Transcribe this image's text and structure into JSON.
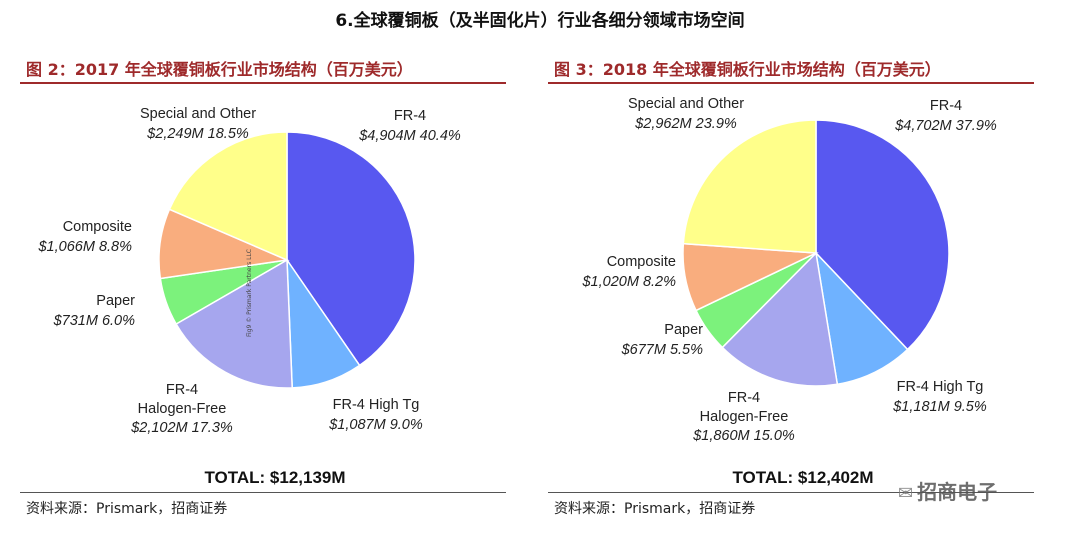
{
  "page_title": "6.全球覆铜板（及半固化片）行业各细分领域市场空间",
  "watermark": "招商电子",
  "colors": {
    "title_red": "#9e2a2b",
    "fr4": "#5858f0",
    "fr4_high_tg": "#6fb2ff",
    "fr4_halogen_free": "#a6a6ee",
    "paper": "#7cf27c",
    "composite": "#f9ad7e",
    "special_other": "#ffff8a"
  },
  "chart_data": [
    {
      "type": "pie",
      "title": "图 2：2017 年全球覆铜板行业市场结构（百万美元）",
      "total_label": "TOTAL: $12,139M",
      "source": "资料来源：Prismark，招商证券",
      "vertical_note": "Fig9 © Prismark Partners LLC",
      "slices": [
        {
          "name": "FR-4",
          "value_label": "$4,904M",
          "percent": 40.4,
          "value": 4904,
          "color": "#5858f0"
        },
        {
          "name": "FR-4 High Tg",
          "value_label": "$1,087M",
          "percent": 9.0,
          "value": 1087,
          "color": "#6fb2ff"
        },
        {
          "name": "FR-4 Halogen-Free",
          "value_label": "$2,102M",
          "percent": 17.3,
          "value": 2102,
          "color": "#a6a6ee"
        },
        {
          "name": "Paper",
          "value_label": "$731M",
          "percent": 6.0,
          "value": 731,
          "color": "#7cf27c"
        },
        {
          "name": "Composite",
          "value_label": "$1,066M",
          "percent": 8.8,
          "value": 1066,
          "color": "#f9ad7e"
        },
        {
          "name": "Special and Other",
          "value_label": "$2,249M",
          "percent": 18.5,
          "value": 2249,
          "color": "#ffff8a"
        }
      ]
    },
    {
      "type": "pie",
      "title": "图 3：2018 年全球覆铜板行业市场结构（百万美元）",
      "total_label": "TOTAL: $12,402M",
      "source": "资料来源：Prismark，招商证券",
      "slices": [
        {
          "name": "FR-4",
          "value_label": "$4,702M",
          "percent": 37.9,
          "value": 4702,
          "color": "#5858f0"
        },
        {
          "name": "FR-4 High Tg",
          "value_label": "$1,181M",
          "percent": 9.5,
          "value": 1181,
          "color": "#6fb2ff"
        },
        {
          "name": "FR-4 Halogen-Free",
          "value_label": "$1,860M",
          "percent": 15.0,
          "value": 1860,
          "color": "#a6a6ee"
        },
        {
          "name": "Paper",
          "value_label": "$677M",
          "percent": 5.5,
          "value": 677,
          "color": "#7cf27c"
        },
        {
          "name": "Composite",
          "value_label": "$1,020M",
          "percent": 8.2,
          "value": 1020,
          "color": "#f9ad7e"
        },
        {
          "name": "Special and Other",
          "value_label": "$2,962M",
          "percent": 23.9,
          "value": 2962,
          "color": "#ffff8a"
        }
      ]
    }
  ]
}
